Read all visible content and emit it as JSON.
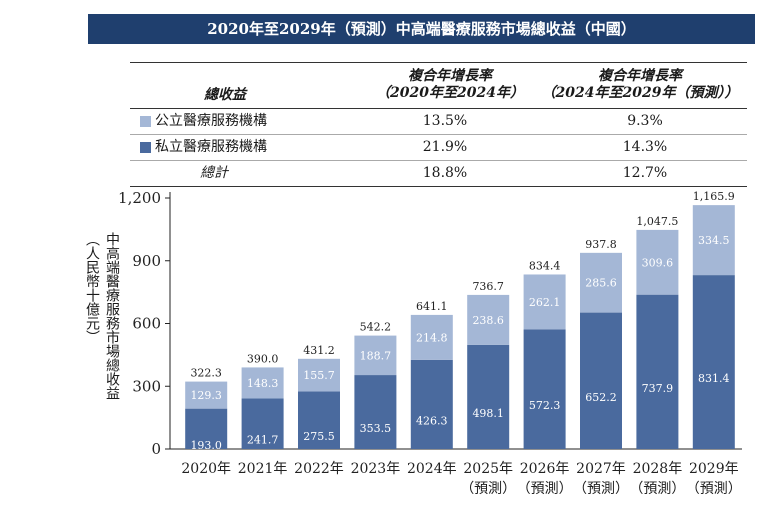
{
  "title": "2020年至2029年（預測）中高端醫療服務市場總收益（中國）",
  "summary_table": {
    "headers": {
      "label": "總收益",
      "col1_line1": "複合年增長率",
      "col1_line2": "（2020年至2024年）",
      "col2_line1": "複合年增長率",
      "col2_line2": "（2024年至2029年（預測））"
    },
    "rows": [
      {
        "label": "公立醫療服務機構",
        "col1": "13.5%",
        "col2": "9.3%",
        "color": "#a4b7d6"
      },
      {
        "label": "私立醫療服務機構",
        "col1": "21.9%",
        "col2": "14.3%",
        "color": "#4a6a9e"
      },
      {
        "label": "總計",
        "col1": "18.8%",
        "col2": "12.7%"
      }
    ]
  },
  "chart_data": {
    "type": "bar",
    "stacked": true,
    "categories": [
      "2020年",
      "2021年",
      "2022年",
      "2023年",
      "2024年",
      "2025年",
      "2026年",
      "2027年",
      "2028年",
      "2029年"
    ],
    "category_sublabels": [
      "",
      "",
      "",
      "",
      "",
      "（預測）",
      "（預測）",
      "（預測）",
      "（預測）",
      "（預測）"
    ],
    "series": [
      {
        "name": "私立醫療服務機構",
        "color": "#4a6a9e",
        "values": [
          193.0,
          241.7,
          275.5,
          353.5,
          426.3,
          498.1,
          572.3,
          652.2,
          737.9,
          831.4
        ]
      },
      {
        "name": "公立醫療服務機構",
        "color": "#a4b7d6",
        "values": [
          129.3,
          148.3,
          155.7,
          188.7,
          214.8,
          238.6,
          262.1,
          285.6,
          309.6,
          334.5
        ]
      }
    ],
    "totals": [
      322.3,
      390.0,
      431.2,
      542.2,
      641.1,
      736.7,
      834.4,
      937.8,
      1047.5,
      1165.9
    ],
    "ylabel_line1": "中高端醫療服務市場總收益",
    "ylabel_line2": "（人民幣十億元）",
    "yticks": [
      0,
      300,
      600,
      900,
      1200
    ],
    "ylim": [
      0,
      1200
    ]
  }
}
